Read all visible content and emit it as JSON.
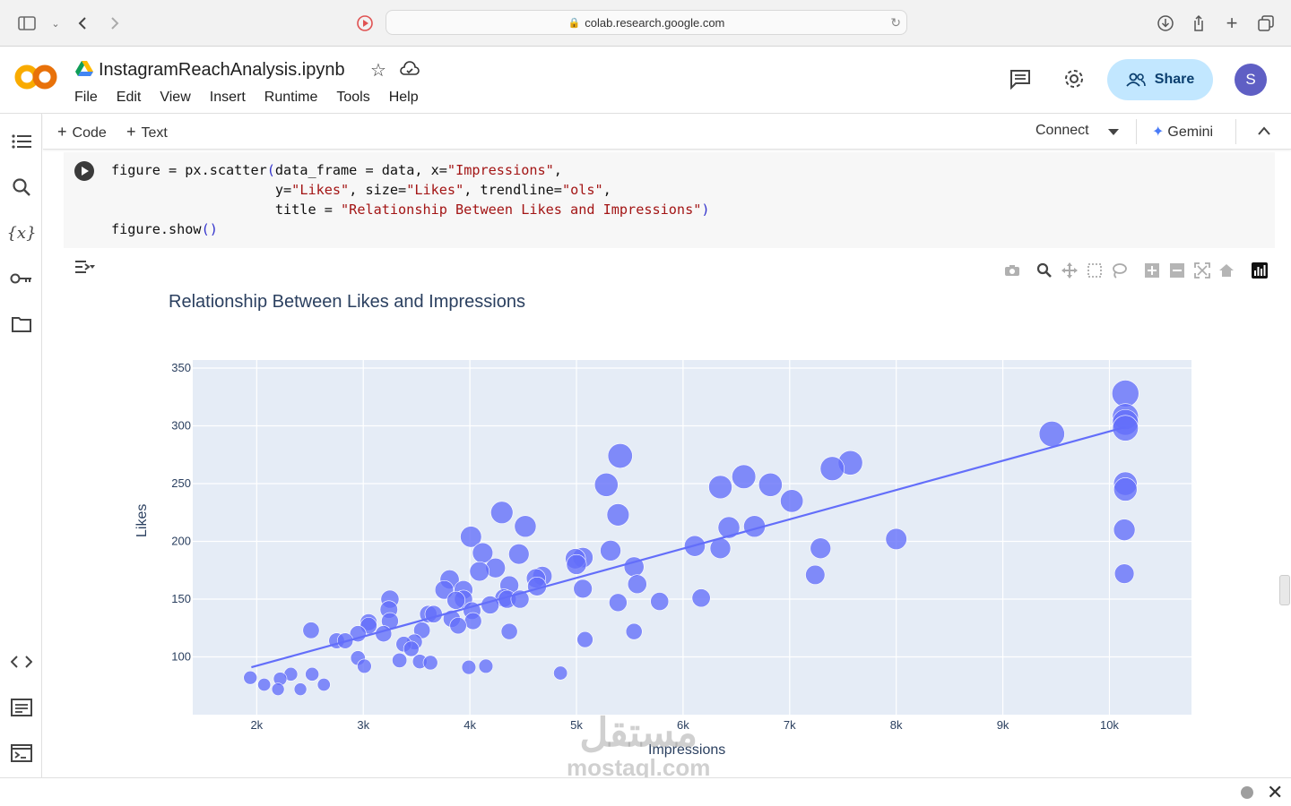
{
  "browser": {
    "url": "colab.research.google.com"
  },
  "header": {
    "notebook_title": "InstagramReachAnalysis.ipynb",
    "menu": [
      "File",
      "Edit",
      "View",
      "Insert",
      "Runtime",
      "Tools",
      "Help"
    ],
    "share_label": "Share",
    "avatar_letter": "S"
  },
  "toolbar": {
    "add_code": "Code",
    "add_text": "Text",
    "connect": "Connect",
    "gemini": "Gemini"
  },
  "code_cell": {
    "lines": [
      "figure = px.scatter(data_frame = data, x=\"Impressions\",",
      "                    y=\"Likes\", size=\"Likes\", trendline=\"ols\",",
      "                    title = \"Relationship Between Likes and Impressions\")",
      "figure.show()"
    ]
  },
  "watermark": {
    "arabic": "مستقل",
    "latin": "mostaql.com"
  },
  "colors": {
    "accent": "#636efa",
    "plot_bg": "#e5ecf6",
    "share_bg": "#c2e7ff"
  },
  "chart_data": {
    "type": "scatter",
    "title": "Relationship Between Likes and Impressions",
    "xlabel": "Impressions",
    "ylabel": "Likes",
    "xlim": [
      1400,
      10770
    ],
    "ylim": [
      50,
      357
    ],
    "x_ticks": [
      2000,
      3000,
      4000,
      5000,
      6000,
      7000,
      8000,
      9000,
      10000
    ],
    "x_tick_labels": [
      "2k",
      "3k",
      "4k",
      "5k",
      "6k",
      "7k",
      "8k",
      "9k",
      "10k"
    ],
    "y_ticks": [
      100,
      150,
      200,
      250,
      300,
      350
    ],
    "y_tick_labels": [
      "100",
      "150",
      "200",
      "250",
      "300",
      "350"
    ],
    "grid": true,
    "trendline": {
      "x": [
        1950,
        10150
      ],
      "y": [
        91,
        299
      ]
    },
    "points": [
      {
        "x": 1940,
        "y": 82
      },
      {
        "x": 2070,
        "y": 76
      },
      {
        "x": 2200,
        "y": 72
      },
      {
        "x": 2220,
        "y": 81
      },
      {
        "x": 2320,
        "y": 85
      },
      {
        "x": 2410,
        "y": 72
      },
      {
        "x": 2520,
        "y": 85
      },
      {
        "x": 2630,
        "y": 76
      },
      {
        "x": 2510,
        "y": 123
      },
      {
        "x": 2750,
        "y": 114
      },
      {
        "x": 2830,
        "y": 114
      },
      {
        "x": 2950,
        "y": 120
      },
      {
        "x": 2950,
        "y": 99
      },
      {
        "x": 3010,
        "y": 92
      },
      {
        "x": 3050,
        "y": 127
      },
      {
        "x": 3050,
        "y": 130
      },
      {
        "x": 3190,
        "y": 120
      },
      {
        "x": 3240,
        "y": 141
      },
      {
        "x": 3250,
        "y": 150
      },
      {
        "x": 3250,
        "y": 131
      },
      {
        "x": 3340,
        "y": 97
      },
      {
        "x": 3380,
        "y": 111
      },
      {
        "x": 3450,
        "y": 107
      },
      {
        "x": 3480,
        "y": 113
      },
      {
        "x": 3530,
        "y": 96
      },
      {
        "x": 3550,
        "y": 123
      },
      {
        "x": 3610,
        "y": 137
      },
      {
        "x": 3630,
        "y": 95
      },
      {
        "x": 3660,
        "y": 137
      },
      {
        "x": 3760,
        "y": 158
      },
      {
        "x": 3810,
        "y": 167
      },
      {
        "x": 3830,
        "y": 133
      },
      {
        "x": 3870,
        "y": 149
      },
      {
        "x": 3890,
        "y": 127
      },
      {
        "x": 3940,
        "y": 158
      },
      {
        "x": 3940,
        "y": 150
      },
      {
        "x": 3990,
        "y": 91
      },
      {
        "x": 4020,
        "y": 140
      },
      {
        "x": 4030,
        "y": 131
      },
      {
        "x": 4010,
        "y": 204
      },
      {
        "x": 4090,
        "y": 174
      },
      {
        "x": 4120,
        "y": 190
      },
      {
        "x": 4150,
        "y": 92
      },
      {
        "x": 4190,
        "y": 145
      },
      {
        "x": 4240,
        "y": 177
      },
      {
        "x": 4300,
        "y": 225
      },
      {
        "x": 4320,
        "y": 151
      },
      {
        "x": 4350,
        "y": 150
      },
      {
        "x": 4370,
        "y": 162
      },
      {
        "x": 4370,
        "y": 122
      },
      {
        "x": 4460,
        "y": 189
      },
      {
        "x": 4470,
        "y": 150
      },
      {
        "x": 4520,
        "y": 213
      },
      {
        "x": 4620,
        "y": 168
      },
      {
        "x": 4630,
        "y": 161
      },
      {
        "x": 4680,
        "y": 170
      },
      {
        "x": 4850,
        "y": 86
      },
      {
        "x": 4990,
        "y": 185
      },
      {
        "x": 5000,
        "y": 180
      },
      {
        "x": 5060,
        "y": 186
      },
      {
        "x": 5060,
        "y": 159
      },
      {
        "x": 5080,
        "y": 115
      },
      {
        "x": 5280,
        "y": 249
      },
      {
        "x": 5320,
        "y": 192
      },
      {
        "x": 5390,
        "y": 223
      },
      {
        "x": 5390,
        "y": 147
      },
      {
        "x": 5410,
        "y": 274
      },
      {
        "x": 5540,
        "y": 178
      },
      {
        "x": 5540,
        "y": 122
      },
      {
        "x": 5570,
        "y": 163
      },
      {
        "x": 5780,
        "y": 148
      },
      {
        "x": 6110,
        "y": 196
      },
      {
        "x": 6170,
        "y": 151
      },
      {
        "x": 6350,
        "y": 247
      },
      {
        "x": 6350,
        "y": 194
      },
      {
        "x": 6430,
        "y": 212
      },
      {
        "x": 6570,
        "y": 256
      },
      {
        "x": 6670,
        "y": 213
      },
      {
        "x": 6820,
        "y": 249
      },
      {
        "x": 7020,
        "y": 235
      },
      {
        "x": 7240,
        "y": 171
      },
      {
        "x": 7290,
        "y": 194
      },
      {
        "x": 7400,
        "y": 263
      },
      {
        "x": 7570,
        "y": 268
      },
      {
        "x": 8000,
        "y": 202
      },
      {
        "x": 9460,
        "y": 293
      },
      {
        "x": 10140,
        "y": 172
      },
      {
        "x": 10140,
        "y": 210
      },
      {
        "x": 10150,
        "y": 245
      },
      {
        "x": 10150,
        "y": 250
      },
      {
        "x": 10150,
        "y": 298
      },
      {
        "x": 10150,
        "y": 303
      },
      {
        "x": 10150,
        "y": 308
      },
      {
        "x": 10150,
        "y": 328
      }
    ]
  }
}
